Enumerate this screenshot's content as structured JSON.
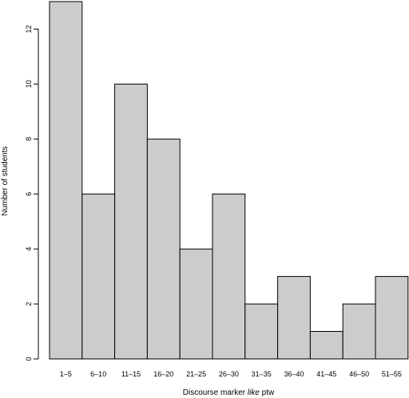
{
  "chart_data": {
    "type": "bar",
    "title": "",
    "xlabel": {
      "before": "Discourse marker ",
      "italic": "like",
      "after": " ptw"
    },
    "ylabel": "Number of students",
    "categories": [
      "1–5",
      "6–10",
      "11–15",
      "16–20",
      "21–25",
      "26–30",
      "31–35",
      "36–40",
      "41–45",
      "46–50",
      "51–55"
    ],
    "values": [
      13,
      6,
      10,
      8,
      4,
      6,
      2,
      3,
      1,
      2,
      3
    ],
    "ylim": [
      0,
      13
    ],
    "yticks": [
      0,
      2,
      4,
      6,
      8,
      10,
      12
    ],
    "grid": false,
    "bar_color": "#cccccc",
    "edge_color": "#000000"
  }
}
